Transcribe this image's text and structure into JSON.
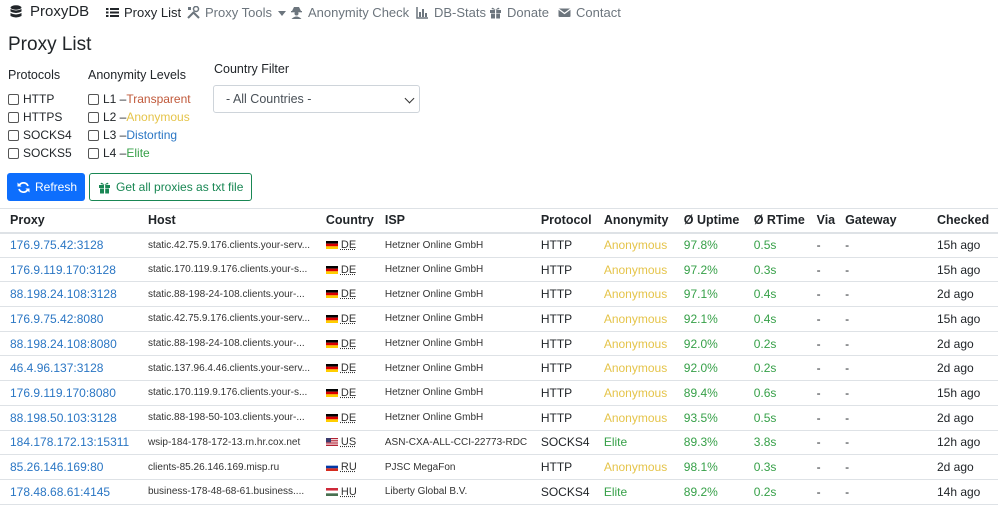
{
  "nav": {
    "brand": "ProxyDB",
    "items": [
      {
        "label": "Proxy List",
        "icon": "list-icon",
        "active": true
      },
      {
        "label": "Proxy Tools",
        "icon": "tools-icon",
        "dropdown": true
      },
      {
        "label": "Anonymity Check",
        "icon": "user-secret-icon"
      },
      {
        "label": "DB-Stats",
        "icon": "chart-icon"
      },
      {
        "label": "Donate",
        "icon": "gift-icon"
      },
      {
        "label": "Contact",
        "icon": "envelope-icon"
      }
    ]
  },
  "page_title": "Proxy List",
  "filters": {
    "protocols_title": "Protocols",
    "protocols": [
      "HTTP",
      "HTTPS",
      "SOCKS4",
      "SOCKS5"
    ],
    "anonymity_title": "Anonymity Levels",
    "anonymity": [
      {
        "prefix": "L1 – ",
        "label": "Transparent",
        "color": "#c0593a"
      },
      {
        "prefix": "L2 – ",
        "label": "Anonymous",
        "color": "#e5c44a"
      },
      {
        "prefix": "L3 – ",
        "label": "Distorting",
        "color": "#2a76c4"
      },
      {
        "prefix": "L4 – ",
        "label": "Elite",
        "color": "#36a048"
      }
    ],
    "country_title": "Country Filter",
    "country_selected": "- All Countries -"
  },
  "buttons": {
    "refresh": "Refresh",
    "get_all": "Get all proxies as txt file"
  },
  "table": {
    "headers": [
      "Proxy",
      "Host",
      "Country",
      "ISP",
      "Protocol",
      "Anonymity",
      "Ø Uptime",
      "Ø RTime",
      "Via",
      "Gateway",
      "Checked"
    ],
    "rows": [
      {
        "proxy": "176.9.75.42:3128",
        "host": "static.42.75.9.176.clients.your-serv...",
        "country": "DE",
        "isp": "Hetzner Online GmbH",
        "protocol": "HTTP",
        "anonymity": "Anonymous",
        "uptime": "97.8%",
        "rtime": "0.5s",
        "via": "-",
        "gateway": "-",
        "checked": "15h ago"
      },
      {
        "proxy": "176.9.119.170:3128",
        "host": "static.170.119.9.176.clients.your-s...",
        "country": "DE",
        "isp": "Hetzner Online GmbH",
        "protocol": "HTTP",
        "anonymity": "Anonymous",
        "uptime": "97.2%",
        "rtime": "0.3s",
        "via": "-",
        "gateway": "-",
        "checked": "15h ago"
      },
      {
        "proxy": "88.198.24.108:3128",
        "host": "static.88-198-24-108.clients.your-...",
        "country": "DE",
        "isp": "Hetzner Online GmbH",
        "protocol": "HTTP",
        "anonymity": "Anonymous",
        "uptime": "97.1%",
        "rtime": "0.4s",
        "via": "-",
        "gateway": "-",
        "checked": "2d ago"
      },
      {
        "proxy": "176.9.75.42:8080",
        "host": "static.42.75.9.176.clients.your-serv...",
        "country": "DE",
        "isp": "Hetzner Online GmbH",
        "protocol": "HTTP",
        "anonymity": "Anonymous",
        "uptime": "92.1%",
        "rtime": "0.4s",
        "via": "-",
        "gateway": "-",
        "checked": "15h ago"
      },
      {
        "proxy": "88.198.24.108:8080",
        "host": "static.88-198-24-108.clients.your-...",
        "country": "DE",
        "isp": "Hetzner Online GmbH",
        "protocol": "HTTP",
        "anonymity": "Anonymous",
        "uptime": "92.0%",
        "rtime": "0.2s",
        "via": "-",
        "gateway": "-",
        "checked": "2d ago"
      },
      {
        "proxy": "46.4.96.137:3128",
        "host": "static.137.96.4.46.clients.your-serv...",
        "country": "DE",
        "isp": "Hetzner Online GmbH",
        "protocol": "HTTP",
        "anonymity": "Anonymous",
        "uptime": "92.0%",
        "rtime": "0.2s",
        "via": "-",
        "gateway": "-",
        "checked": "2d ago"
      },
      {
        "proxy": "176.9.119.170:8080",
        "host": "static.170.119.9.176.clients.your-s...",
        "country": "DE",
        "isp": "Hetzner Online GmbH",
        "protocol": "HTTP",
        "anonymity": "Anonymous",
        "uptime": "89.4%",
        "rtime": "0.6s",
        "via": "-",
        "gateway": "-",
        "checked": "15h ago"
      },
      {
        "proxy": "88.198.50.103:3128",
        "host": "static.88-198-50-103.clients.your-...",
        "country": "DE",
        "isp": "Hetzner Online GmbH",
        "protocol": "HTTP",
        "anonymity": "Anonymous",
        "uptime": "93.5%",
        "rtime": "0.5s",
        "via": "-",
        "gateway": "-",
        "checked": "2d ago"
      },
      {
        "proxy": "184.178.172.13:15311",
        "host": "wsip-184-178-172-13.rn.hr.cox.net",
        "country": "US",
        "isp": "ASN-CXA-ALL-CCI-22773-RDC",
        "protocol": "SOCKS4",
        "anonymity": "Elite",
        "uptime": "89.3%",
        "rtime": "3.8s",
        "via": "-",
        "gateway": "-",
        "checked": "12h ago"
      },
      {
        "proxy": "85.26.146.169:80",
        "host": "clients-85.26.146.169.misp.ru",
        "country": "RU",
        "isp": "PJSC MegaFon",
        "protocol": "HTTP",
        "anonymity": "Anonymous",
        "uptime": "98.1%",
        "rtime": "0.3s",
        "via": "-",
        "gateway": "-",
        "checked": "2d ago"
      },
      {
        "proxy": "178.48.68.61:4145",
        "host": "business-178-48-68-61.business....",
        "country": "HU",
        "isp": "Liberty Global B.V.",
        "protocol": "SOCKS4",
        "anonymity": "Elite",
        "uptime": "89.2%",
        "rtime": "0.2s",
        "via": "-",
        "gateway": "-",
        "checked": "14h ago"
      }
    ]
  }
}
